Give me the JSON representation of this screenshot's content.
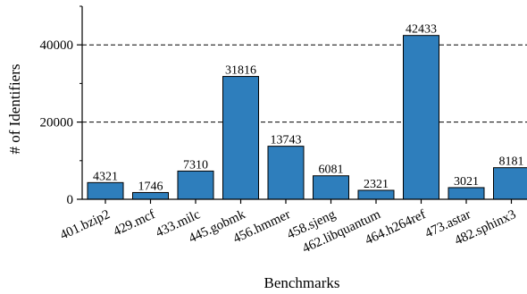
{
  "chart_data": {
    "type": "bar",
    "title": "",
    "xlabel": "Benchmarks",
    "ylabel": "# of Identifiers",
    "categories": [
      "401.bzip2",
      "429.mcf",
      "433.milc",
      "445.gobmk",
      "456.hmmer",
      "458.sjeng",
      "462.libquantum",
      "464.h264ref",
      "473.astar",
      "482.sphinx3"
    ],
    "values": [
      4321,
      1746,
      7310,
      31816,
      13743,
      6081,
      2321,
      42433,
      3021,
      8181
    ],
    "data_labels": [
      "4321",
      "1746",
      "7310",
      "31816",
      "13743",
      "6081",
      "2321",
      "42433",
      "3021",
      "8181"
    ],
    "yticks": [
      0,
      20000,
      40000
    ],
    "ytick_labels": [
      "0",
      "20000",
      "40000"
    ],
    "ylim": [
      0,
      50000
    ],
    "grid": "horizontal dashed at major ticks",
    "minor_yticks": true,
    "bar_color": "#2e7ebc",
    "bar_edge_color": "#000000",
    "x_tick_rotation_deg": -25
  }
}
